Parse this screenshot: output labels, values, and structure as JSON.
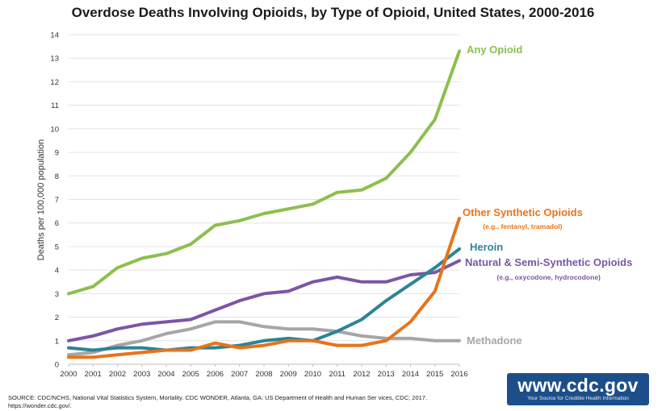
{
  "page": {
    "title": "Overdose Deaths Involving Opioids, by Type of Opioid, United States, 2000-2016",
    "source_line1": "SOURCE: CDC/NCHS, National Vital Statistics System, Mortality. CDC WONDER, Atlanta, GA: US Department of Health and Human Ser vices, CDC; 2017.",
    "source_line2": "https://wonder.cdc.gov/.",
    "logo_text": "www.cdc.gov",
    "logo_tagline": "Your Source for Credible Health Information"
  },
  "chart_data": {
    "type": "line",
    "title": "Overdose Deaths Involving Opioids, by Type of Opioid, United States, 2000-2016",
    "xlabel": "",
    "ylabel": "Deaths per 100,000 population",
    "x": [
      2000,
      2001,
      2002,
      2003,
      2004,
      2005,
      2006,
      2007,
      2008,
      2009,
      2010,
      2011,
      2012,
      2013,
      2014,
      2015,
      2016
    ],
    "ylim": [
      0,
      14
    ],
    "yticks": [
      0,
      1,
      2,
      3,
      4,
      5,
      6,
      7,
      8,
      9,
      10,
      11,
      12,
      13,
      14
    ],
    "grid": true,
    "legend": "direct labels at right end of lines",
    "series": [
      {
        "name": "Any Opioid",
        "color": "#8cbf4f",
        "values": [
          3.0,
          3.3,
          4.1,
          4.5,
          4.7,
          5.1,
          5.9,
          6.1,
          6.4,
          6.6,
          6.8,
          7.3,
          7.4,
          7.9,
          9.0,
          10.4,
          13.3
        ]
      },
      {
        "name": "Other Synthetic Opioids",
        "sublabel": "(e.g., fentanyl, tramadol)",
        "color": "#e8731a",
        "values": [
          0.3,
          0.3,
          0.4,
          0.5,
          0.6,
          0.6,
          0.9,
          0.7,
          0.8,
          1.0,
          1.0,
          0.8,
          0.8,
          1.0,
          1.8,
          3.1,
          6.2
        ]
      },
      {
        "name": "Heroin",
        "color": "#2b8496",
        "values": [
          0.7,
          0.6,
          0.7,
          0.7,
          0.6,
          0.7,
          0.7,
          0.8,
          1.0,
          1.1,
          1.0,
          1.4,
          1.9,
          2.7,
          3.4,
          4.1,
          4.9
        ]
      },
      {
        "name": "Natural & Semi-Synthetic Opioids",
        "sublabel": "(e.g., oxycodone, hydrocodone)",
        "color": "#7b56a5",
        "values": [
          1.0,
          1.2,
          1.5,
          1.7,
          1.8,
          1.9,
          2.3,
          2.7,
          3.0,
          3.1,
          3.5,
          3.7,
          3.5,
          3.5,
          3.8,
          3.9,
          4.4
        ]
      },
      {
        "name": "Methadone",
        "color": "#a6a6a6",
        "values": [
          0.4,
          0.5,
          0.8,
          1.0,
          1.3,
          1.5,
          1.8,
          1.8,
          1.6,
          1.5,
          1.5,
          1.4,
          1.2,
          1.1,
          1.1,
          1.0,
          1.0
        ]
      }
    ]
  }
}
